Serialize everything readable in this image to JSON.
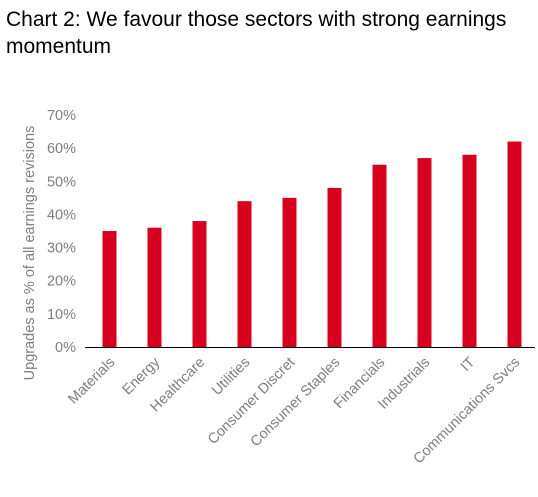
{
  "chart_data": {
    "type": "bar",
    "title": "Chart 2: We favour those sectors with strong earnings momentum",
    "ylabel": "Upgrades as % of all earnings revisions",
    "xlabel": "",
    "categories": [
      "Materials",
      "Energy",
      "Healthcare",
      "Utilities",
      "Consumer Discret",
      "Consumer Staples",
      "Financials",
      "Industrials",
      "IT",
      "Communications Svcs"
    ],
    "values": [
      35,
      36,
      38,
      44,
      45,
      48,
      55,
      57,
      58,
      62
    ],
    "ylim": [
      0,
      70
    ],
    "yticks": [
      "0%",
      "10%",
      "20%",
      "30%",
      "40%",
      "50%",
      "60%",
      "70%"
    ],
    "grid": false,
    "legend": "none",
    "bar_color": "#d7001e"
  }
}
